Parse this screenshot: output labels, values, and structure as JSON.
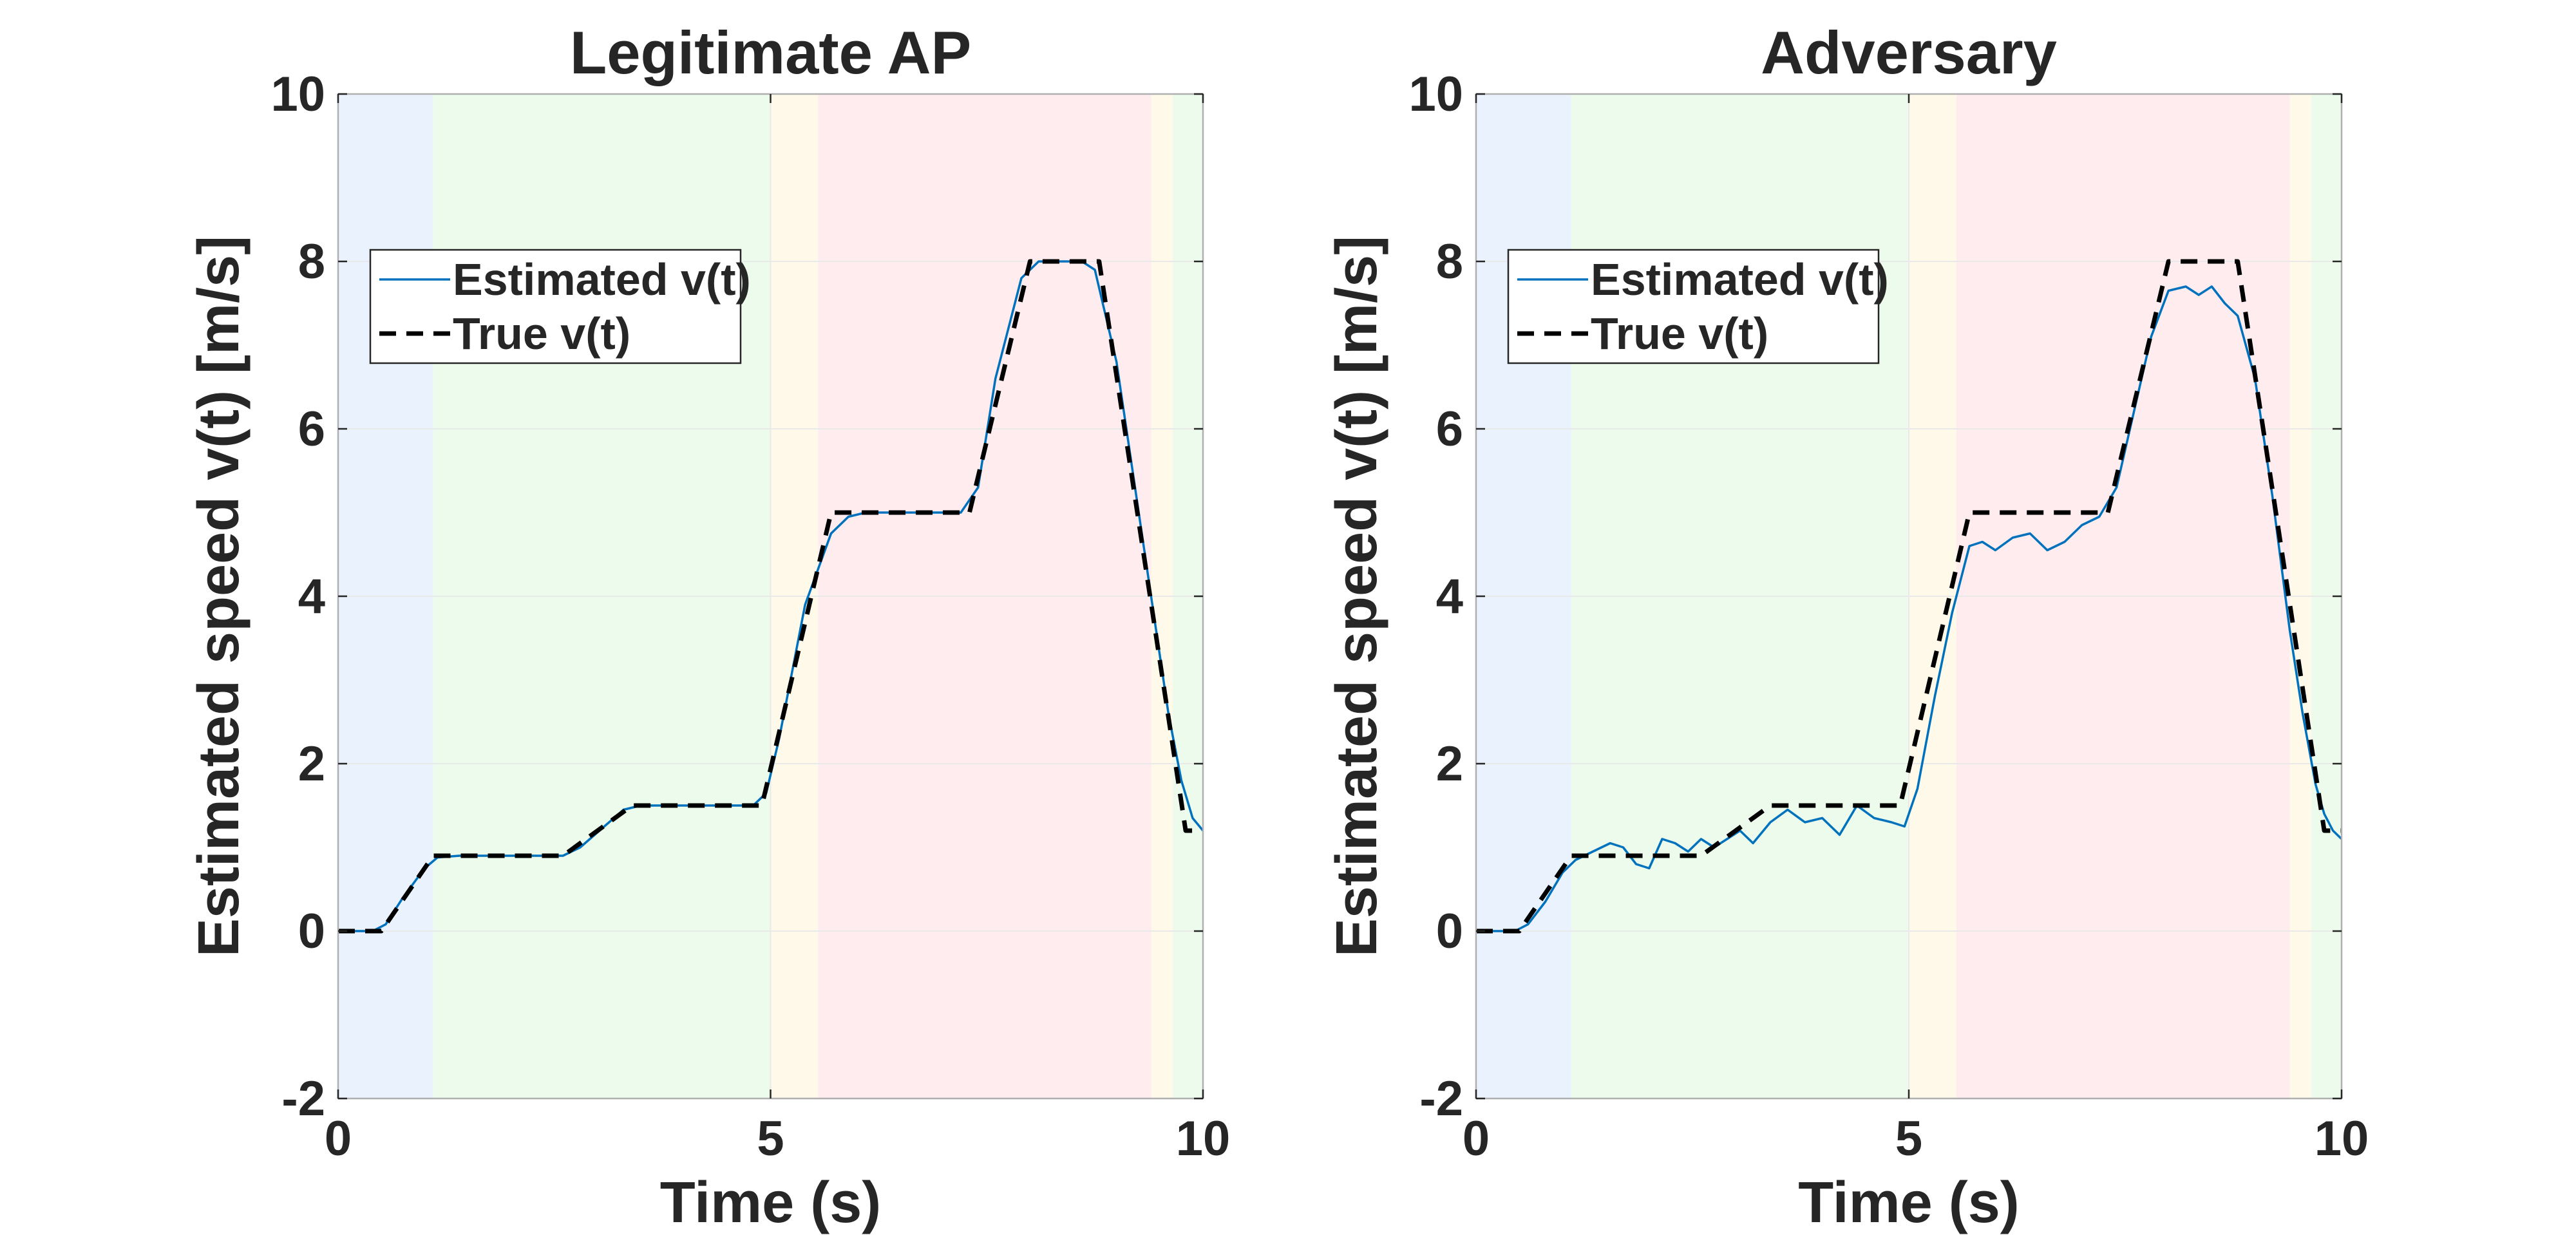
{
  "chart_data": [
    {
      "type": "line",
      "title": "Legitimate AP",
      "xlabel": "Time (s)",
      "ylabel": "Estimated speed v(t) [m/s]",
      "xlim": [
        0,
        10
      ],
      "ylim": [
        -2,
        10
      ],
      "xticks": [
        0,
        5,
        10
      ],
      "yticks": [
        -2,
        0,
        2,
        4,
        6,
        8,
        10
      ],
      "grid": true,
      "legend": {
        "location": "upper-left",
        "entries": [
          "Estimated v(t)",
          "True v(t)"
        ]
      },
      "phases": [
        {
          "start": 0,
          "end": 1.1,
          "color": "#eaf2fd"
        },
        {
          "start": 1.1,
          "end": 5.0,
          "color": "#ecfbeb"
        },
        {
          "start": 5.0,
          "end": 5.55,
          "color": "#fff9ea"
        },
        {
          "start": 5.55,
          "end": 9.4,
          "color": "#feecef"
        },
        {
          "start": 9.4,
          "end": 9.65,
          "color": "#fff9ea"
        },
        {
          "start": 9.65,
          "end": 10.0,
          "color": "#ecfbeb"
        }
      ],
      "series": [
        {
          "name": "True v(t)",
          "style": "dashed",
          "color": "#000000",
          "x": [
            0,
            0.5,
            1.1,
            2.6,
            3.4,
            4.9,
            5.7,
            7.3,
            8.0,
            8.8,
            9.8,
            10.0
          ],
          "y": [
            0,
            0,
            0.9,
            0.9,
            1.5,
            1.5,
            5.0,
            5.0,
            8.0,
            8.0,
            1.2,
            1.2
          ]
        },
        {
          "name": "Estimated v(t)",
          "style": "solid",
          "color": "#0072bd",
          "x": [
            0,
            0.4,
            0.55,
            0.75,
            1.0,
            1.15,
            1.4,
            2.6,
            2.8,
            3.3,
            3.5,
            4.8,
            4.95,
            5.1,
            5.4,
            5.7,
            5.9,
            6.1,
            7.2,
            7.4,
            7.6,
            7.9,
            8.1,
            8.6,
            8.75,
            9.0,
            9.4,
            9.6,
            9.75,
            9.88,
            10.0
          ],
          "y": [
            0,
            0,
            0.08,
            0.4,
            0.75,
            0.88,
            0.9,
            0.9,
            1.0,
            1.45,
            1.5,
            1.5,
            1.65,
            2.3,
            3.9,
            4.75,
            4.95,
            5.0,
            5.0,
            5.3,
            6.6,
            7.8,
            8.0,
            8.0,
            7.9,
            6.8,
            4.0,
            2.6,
            1.8,
            1.35,
            1.2
          ]
        }
      ]
    },
    {
      "type": "line",
      "title": "Adversary",
      "xlabel": "Time (s)",
      "ylabel": "Estimated speed v(t) [m/s]",
      "xlim": [
        0,
        10
      ],
      "ylim": [
        -2,
        10
      ],
      "xticks": [
        0,
        5,
        10
      ],
      "yticks": [
        -2,
        0,
        2,
        4,
        6,
        8,
        10
      ],
      "grid": true,
      "legend": {
        "location": "upper-left",
        "entries": [
          "Estimated v(t)",
          "True v(t)"
        ]
      },
      "phases": [
        {
          "start": 0,
          "end": 1.1,
          "color": "#eaf2fd"
        },
        {
          "start": 1.1,
          "end": 5.0,
          "color": "#ecfbeb"
        },
        {
          "start": 5.0,
          "end": 5.55,
          "color": "#fff9ea"
        },
        {
          "start": 5.55,
          "end": 9.4,
          "color": "#feecef"
        },
        {
          "start": 9.4,
          "end": 9.65,
          "color": "#fff9ea"
        },
        {
          "start": 9.65,
          "end": 10.0,
          "color": "#ecfbeb"
        }
      ],
      "series": [
        {
          "name": "True v(t)",
          "style": "dashed",
          "color": "#000000",
          "x": [
            0,
            0.5,
            1.1,
            2.6,
            3.4,
            4.9,
            5.7,
            7.3,
            8.0,
            8.8,
            9.8,
            10.0
          ],
          "y": [
            0,
            0,
            0.9,
            0.9,
            1.5,
            1.5,
            5.0,
            5.0,
            8.0,
            8.0,
            1.2,
            1.2
          ]
        },
        {
          "name": "Estimated v(t)",
          "style": "solid",
          "color": "#0072bd",
          "x": [
            0,
            0.45,
            0.6,
            0.8,
            1.0,
            1.15,
            1.35,
            1.55,
            1.7,
            1.85,
            2.0,
            2.15,
            2.3,
            2.45,
            2.6,
            2.75,
            2.9,
            3.05,
            3.2,
            3.4,
            3.6,
            3.8,
            4.0,
            4.2,
            4.4,
            4.6,
            4.8,
            4.95,
            5.1,
            5.3,
            5.5,
            5.7,
            5.85,
            6.0,
            6.2,
            6.4,
            6.6,
            6.8,
            7.0,
            7.2,
            7.4,
            7.6,
            7.8,
            8.0,
            8.2,
            8.35,
            8.5,
            8.65,
            8.8,
            9.0,
            9.2,
            9.4,
            9.55,
            9.7,
            9.8,
            9.9,
            10.0
          ],
          "y": [
            0,
            0,
            0.08,
            0.35,
            0.7,
            0.85,
            0.95,
            1.05,
            1.0,
            0.8,
            0.75,
            1.1,
            1.05,
            0.95,
            1.1,
            1.0,
            1.1,
            1.2,
            1.05,
            1.3,
            1.45,
            1.3,
            1.35,
            1.15,
            1.5,
            1.35,
            1.3,
            1.25,
            1.7,
            2.8,
            3.8,
            4.6,
            4.65,
            4.55,
            4.7,
            4.75,
            4.55,
            4.65,
            4.85,
            4.95,
            5.3,
            6.2,
            7.1,
            7.65,
            7.7,
            7.6,
            7.7,
            7.5,
            7.35,
            6.6,
            5.2,
            3.6,
            2.6,
            1.75,
            1.4,
            1.2,
            1.1
          ]
        }
      ]
    }
  ]
}
